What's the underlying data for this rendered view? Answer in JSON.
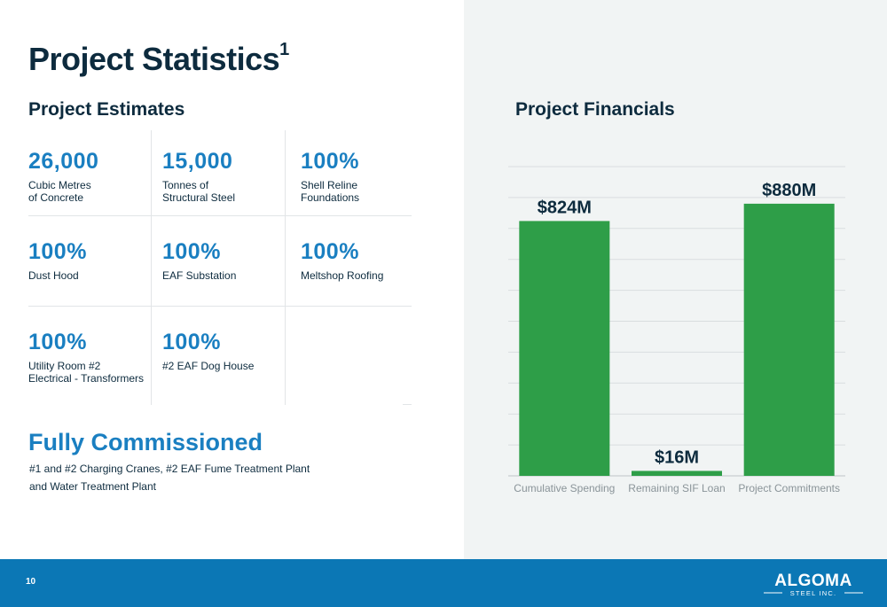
{
  "title": "Project Statistics",
  "title_footnote": "1",
  "estimates": {
    "heading": "Project Estimates",
    "items": [
      {
        "value": "26,000",
        "label": "Cubic Metres\nof Concrete"
      },
      {
        "value": "15,000",
        "label": "Tonnes of\nStructural Steel"
      },
      {
        "value": "100%",
        "label": "Shell Reline\nFoundations"
      },
      {
        "value": "100%",
        "label": "Dust Hood"
      },
      {
        "value": "100%",
        "label": "EAF Substation"
      },
      {
        "value": "100%",
        "label": "Meltshop Roofing"
      },
      {
        "value": "100%",
        "label": "Utility Room #2\nElectrical - Transformers"
      },
      {
        "value": "100%",
        "label": "#2 EAF Dog House"
      }
    ]
  },
  "commissioned": {
    "heading": "Fully Commissioned",
    "text": "#1 and #2 Charging Cranes, #2 EAF Fume Treatment Plant\n and Water Treatment Plant"
  },
  "financials": {
    "heading": "Project Financials"
  },
  "chart_data": {
    "type": "bar",
    "categories": [
      "Cumulative Spending",
      "Remaining SIF Loan",
      "Project Commitments"
    ],
    "values": [
      824,
      16,
      880
    ],
    "data_labels": [
      "$824M",
      "$16M",
      "$880M"
    ],
    "unit": "$M",
    "ylim": [
      0,
      1000
    ],
    "grid": true,
    "bar_color": "#2e9e48",
    "title": "",
    "xlabel": "",
    "ylabel": ""
  },
  "footer": {
    "page_number": "10",
    "logo_name": "ALGOMA",
    "logo_sub": "STEEL INC."
  },
  "colors": {
    "accent_blue": "#1a7fc1",
    "navy": "#0d2b3e",
    "footer_blue": "#0b77b5",
    "panel_gray": "#f1f4f4"
  }
}
